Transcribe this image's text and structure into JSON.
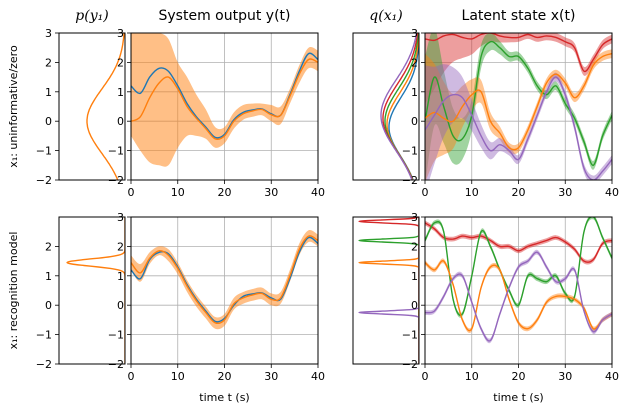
{
  "figure": {
    "row_labels": [
      "x₁: uninformative/zero",
      "x₁: recognition model"
    ],
    "titles": {
      "prior": "p(y₁)",
      "output": "System output y(t)",
      "init": "q(x₁)",
      "latent": "Latent state x(t)"
    },
    "xlabel": "time t (s)"
  },
  "chart_data": [
    {
      "type": "line",
      "panel": "row1-prior",
      "title": "p(y₁)",
      "ylim": [
        -2,
        3
      ],
      "density_curve": {
        "color": "#ff7f0e",
        "peak_y": 0,
        "note": "broad Gaussian centered near 0"
      }
    },
    {
      "type": "line",
      "panel": "row1-output",
      "title": "System output y(t)",
      "xlim": [
        0,
        40
      ],
      "ylim": [
        -2,
        3
      ],
      "x": [
        0,
        2,
        4,
        6,
        8,
        10,
        12,
        14,
        16,
        18,
        20,
        22,
        24,
        26,
        28,
        30,
        32,
        34,
        36,
        38,
        40
      ],
      "series": [
        {
          "color": "#1f77b4",
          "values": [
            1.2,
            0.95,
            1.5,
            1.8,
            1.7,
            1.2,
            0.6,
            0.15,
            -0.2,
            -0.55,
            -0.45,
            0.05,
            0.3,
            0.38,
            0.42,
            0.25,
            0.2,
            0.9,
            1.7,
            2.3,
            2.1
          ]
        },
        {
          "color": "#ff7f0e",
          "values": [
            0.0,
            0.15,
            0.8,
            1.3,
            1.5,
            1.1,
            0.5,
            0.1,
            -0.25,
            -0.6,
            -0.5,
            0.0,
            0.25,
            0.35,
            0.4,
            0.22,
            0.2,
            0.85,
            1.6,
            2.1,
            2.0
          ]
        }
      ],
      "band": {
        "color": "#ff7f0e",
        "upper": [
          3.0,
          3.0,
          3.0,
          3.0,
          2.8,
          2.0,
          1.5,
          0.9,
          0.4,
          -0.2,
          -0.2,
          0.3,
          0.55,
          0.6,
          0.6,
          0.55,
          0.5,
          1.1,
          1.9,
          2.5,
          2.4
        ],
        "lower": [
          -0.5,
          -1.0,
          -1.4,
          -1.5,
          -1.5,
          -0.9,
          -0.5,
          -0.5,
          -0.6,
          -0.9,
          -0.75,
          -0.25,
          0.05,
          0.15,
          0.2,
          0.0,
          -0.1,
          0.6,
          1.3,
          1.8,
          1.7
        ]
      },
      "grid": true
    },
    {
      "type": "line",
      "panel": "row1-init",
      "title": "q(x₁)",
      "ylim": [
        -2,
        3
      ],
      "densities": [
        {
          "color": "#1f77b4"
        },
        {
          "color": "#ff7f0e"
        },
        {
          "color": "#2ca02c"
        },
        {
          "color": "#d62728"
        },
        {
          "color": "#9467bd"
        }
      ]
    },
    {
      "type": "line",
      "panel": "row1-latent",
      "title": "Latent state x(t)",
      "xlim": [
        0,
        40
      ],
      "ylim": [
        -2,
        3
      ],
      "x": [
        0,
        2,
        4,
        6,
        8,
        10,
        12,
        14,
        16,
        18,
        20,
        22,
        24,
        26,
        28,
        30,
        32,
        34,
        36,
        38,
        40
      ],
      "series": [
        {
          "color": "#d62728",
          "values": [
            2.8,
            2.75,
            2.9,
            2.95,
            2.85,
            2.8,
            2.95,
            3.0,
            2.9,
            2.85,
            2.85,
            2.95,
            2.85,
            2.9,
            2.85,
            2.7,
            2.5,
            1.7,
            2.1,
            2.6,
            2.8
          ]
        },
        {
          "color": "#2ca02c",
          "values": [
            0.0,
            1.5,
            0.5,
            -0.5,
            -0.6,
            0.2,
            2.2,
            2.7,
            2.5,
            2.2,
            2.2,
            1.8,
            1.2,
            0.9,
            1.2,
            0.6,
            0.1,
            -0.7,
            -1.5,
            -0.5,
            0.2
          ]
        },
        {
          "color": "#ff7f0e",
          "values": [
            0.1,
            0.3,
            0.1,
            0.0,
            0.5,
            0.9,
            1.0,
            0.0,
            -0.4,
            -0.9,
            -0.9,
            -0.3,
            0.5,
            1.3,
            1.6,
            1.3,
            0.8,
            1.2,
            1.9,
            2.2,
            2.3
          ]
        },
        {
          "color": "#9467bd",
          "values": [
            -0.3,
            0.2,
            0.7,
            0.9,
            0.8,
            0.2,
            -0.5,
            -1.0,
            -0.8,
            -1.0,
            -1.3,
            -0.6,
            0.2,
            1.0,
            1.5,
            0.9,
            -0.2,
            -1.6,
            -2.0,
            -1.7,
            -1.3
          ]
        }
      ],
      "grid": true
    },
    {
      "type": "line",
      "panel": "row2-prior",
      "ylim": [
        -2,
        2
      ],
      "density_curve": {
        "color": "#ff7f0e",
        "peak_y": 1.45,
        "note": "narrow peak near 1.45"
      }
    },
    {
      "type": "line",
      "panel": "row2-output",
      "xlabel": "time t (s)",
      "xlim": [
        0,
        40
      ],
      "ylim": [
        -2,
        3
      ],
      "x": [
        0,
        2,
        4,
        6,
        8,
        10,
        12,
        14,
        16,
        18,
        20,
        22,
        24,
        26,
        28,
        30,
        32,
        34,
        36,
        38,
        40
      ],
      "series": [
        {
          "color": "#1f77b4",
          "values": [
            1.2,
            0.9,
            1.55,
            1.8,
            1.75,
            1.3,
            0.7,
            0.2,
            -0.2,
            -0.55,
            -0.45,
            0.0,
            0.3,
            0.38,
            0.42,
            0.25,
            0.2,
            0.9,
            1.8,
            2.3,
            2.1
          ]
        },
        {
          "color": "#ff7f0e",
          "values": [
            1.45,
            1.1,
            1.6,
            1.85,
            1.7,
            1.25,
            0.65,
            0.15,
            -0.25,
            -0.6,
            -0.5,
            0.05,
            0.25,
            0.35,
            0.4,
            0.2,
            0.25,
            1.0,
            1.9,
            2.35,
            2.2
          ]
        }
      ],
      "band": {
        "color": "#ff7f0e",
        "upper": [
          1.7,
          1.4,
          1.8,
          2.0,
          1.9,
          1.45,
          0.85,
          0.35,
          -0.05,
          -0.4,
          -0.3,
          0.25,
          0.45,
          0.55,
          0.6,
          0.4,
          0.45,
          1.2,
          2.1,
          2.55,
          2.4
        ],
        "lower": [
          1.2,
          0.8,
          1.4,
          1.7,
          1.5,
          1.05,
          0.45,
          -0.05,
          -0.45,
          -0.8,
          -0.7,
          -0.15,
          0.05,
          0.15,
          0.2,
          0.0,
          0.05,
          0.8,
          1.7,
          2.15,
          2.0
        ]
      },
      "grid": true
    },
    {
      "type": "line",
      "panel": "row2-init",
      "ylim": [
        -2,
        3
      ],
      "densities": [
        {
          "color": "#d62728",
          "peak_y": 2.85
        },
        {
          "color": "#2ca02c",
          "peak_y": 2.2
        },
        {
          "color": "#ff7f0e",
          "peak_y": 1.45
        },
        {
          "color": "#9467bd",
          "peak_y": -0.25
        }
      ]
    },
    {
      "type": "line",
      "panel": "row2-latent",
      "xlabel": "time t (s)",
      "xlim": [
        0,
        40
      ],
      "ylim": [
        -2,
        3
      ],
      "x": [
        0,
        2,
        4,
        6,
        8,
        10,
        12,
        14,
        16,
        18,
        20,
        22,
        24,
        26,
        28,
        30,
        32,
        34,
        36,
        38,
        40
      ],
      "series": [
        {
          "color": "#d62728",
          "values": [
            2.8,
            2.6,
            2.3,
            2.25,
            2.35,
            2.3,
            2.35,
            2.2,
            2.0,
            2.0,
            1.85,
            2.0,
            2.1,
            2.2,
            2.3,
            2.15,
            1.9,
            1.5,
            1.55,
            2.1,
            2.2
          ]
        },
        {
          "color": "#2ca02c",
          "values": [
            2.2,
            2.8,
            2.5,
            0.2,
            -0.3,
            1.0,
            2.5,
            2.0,
            1.2,
            0.5,
            0.0,
            1.0,
            0.9,
            0.8,
            1.0,
            0.4,
            0.3,
            2.5,
            3.0,
            2.3,
            1.6
          ]
        },
        {
          "color": "#ff7f0e",
          "values": [
            1.45,
            1.2,
            1.5,
            0.7,
            -0.5,
            -0.8,
            0.6,
            1.3,
            1.2,
            0.2,
            -0.6,
            -0.8,
            -0.5,
            0.1,
            0.3,
            0.3,
            0.2,
            -0.1,
            -0.8,
            -0.5,
            -0.3
          ]
        },
        {
          "color": "#9467bd",
          "values": [
            -0.25,
            -0.2,
            0.3,
            0.9,
            1.0,
            0.1,
            -0.8,
            -1.2,
            -0.3,
            0.6,
            1.3,
            1.5,
            1.8,
            1.3,
            0.8,
            0.9,
            1.2,
            -0.2,
            -0.9,
            -0.5,
            -0.3
          ]
        }
      ],
      "grid": true
    }
  ]
}
